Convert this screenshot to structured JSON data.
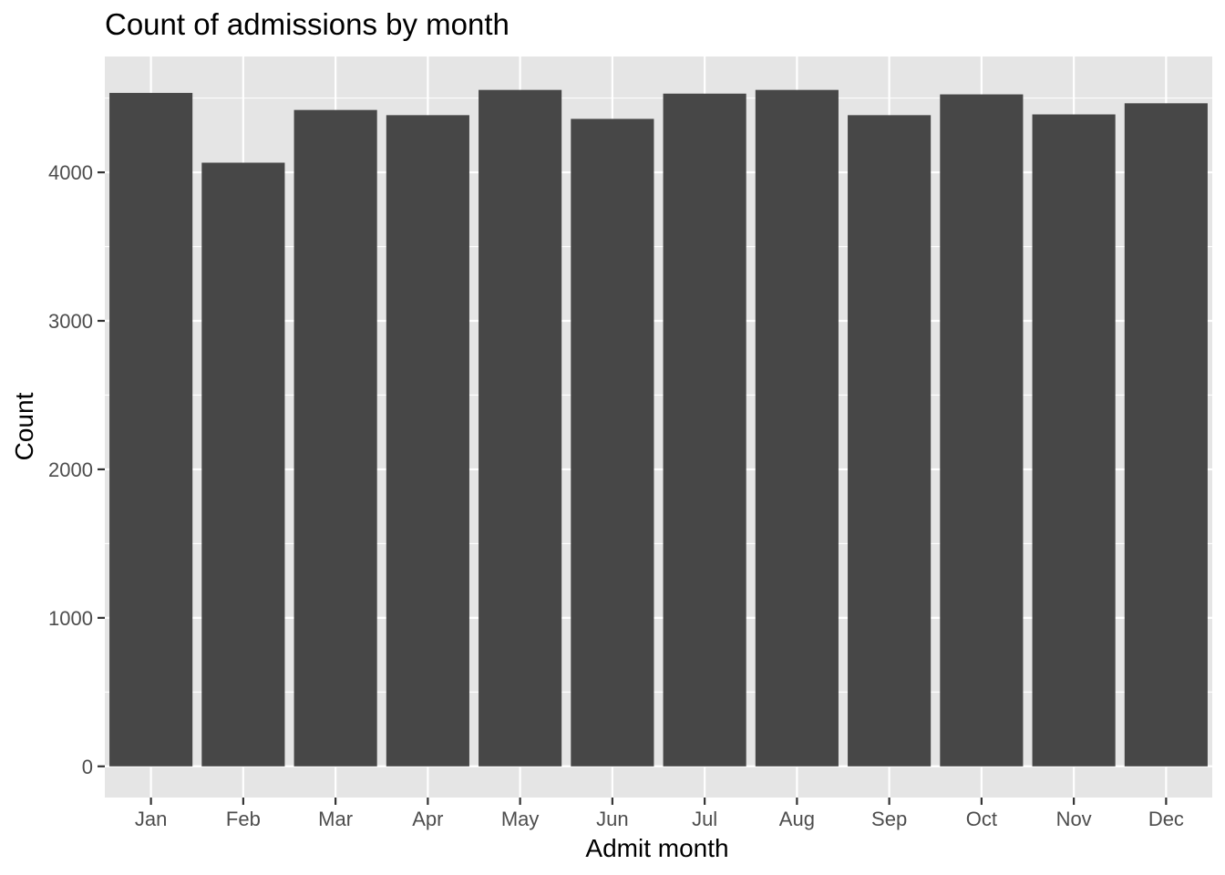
{
  "chart_data": {
    "type": "bar",
    "title": "Count of admissions by month",
    "xlabel": "Admit month",
    "ylabel": "Count",
    "categories": [
      "Jan",
      "Feb",
      "Mar",
      "Apr",
      "May",
      "Jun",
      "Jul",
      "Aug",
      "Sep",
      "Oct",
      "Nov",
      "Dec"
    ],
    "values": [
      4535,
      4065,
      4420,
      4385,
      4555,
      4360,
      4530,
      4555,
      4385,
      4525,
      4390,
      4465
    ],
    "ylim": [
      -210,
      4780
    ],
    "yticks": [
      0,
      1000,
      2000,
      3000,
      4000
    ],
    "ytick_labels": [
      "0",
      "1000",
      "2000",
      "3000",
      "4000"
    ],
    "grid": true,
    "legend": "none",
    "colors": {
      "bar": "#474747",
      "panel": "#e5e5e5",
      "grid": "#ffffff",
      "tick_text": "#4d4d4d",
      "tick_mark": "#333333"
    }
  }
}
